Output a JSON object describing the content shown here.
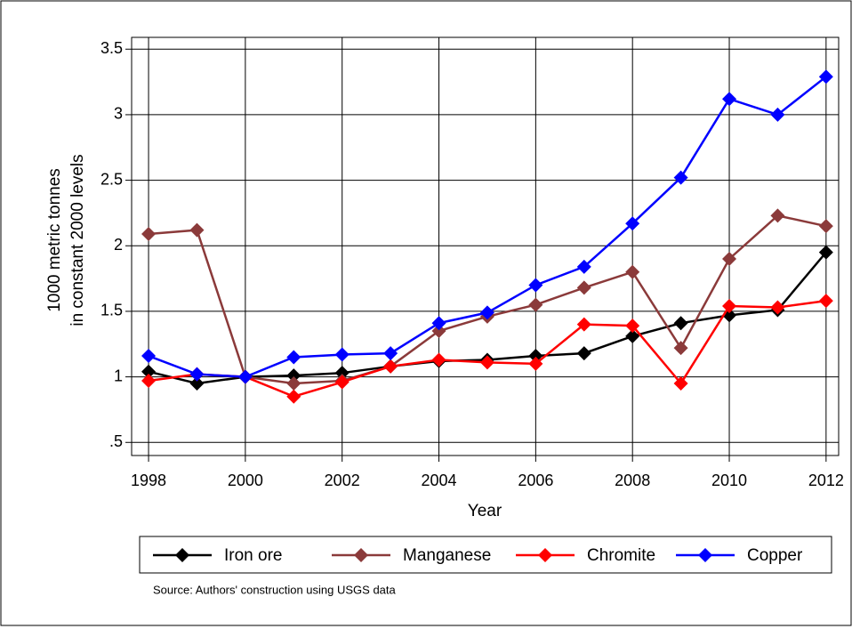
{
  "chart_data": {
    "type": "line",
    "y_label": [
      "1000 metric tonnes",
      "in constant 2000 levels"
    ],
    "x_label": "Year",
    "note": "Source: Authors' construction using USGS data",
    "x": [
      1998,
      1999,
      2000,
      2001,
      2002,
      2003,
      2004,
      2005,
      2006,
      2007,
      2008,
      2009,
      2010,
      2011,
      2012
    ],
    "series": [
      {
        "name": "Iron ore",
        "color": "#000000",
        "values": [
          1.04,
          0.95,
          1.0,
          1.01,
          1.03,
          1.08,
          1.12,
          1.13,
          1.16,
          1.18,
          1.31,
          1.41,
          1.47,
          1.51,
          1.95
        ]
      },
      {
        "name": "Manganese",
        "color": "#8b3a3a",
        "values": [
          2.09,
          2.12,
          1.0,
          0.95,
          0.97,
          1.08,
          1.35,
          1.46,
          1.55,
          1.68,
          1.8,
          1.22,
          1.9,
          2.23,
          2.15
        ]
      },
      {
        "name": "Chromite",
        "color": "#ff0000",
        "values": [
          0.97,
          1.02,
          1.0,
          0.85,
          0.96,
          1.08,
          1.13,
          1.11,
          1.1,
          1.4,
          1.39,
          0.95,
          1.54,
          1.53,
          1.58
        ]
      },
      {
        "name": "Copper",
        "color": "#0000ff",
        "values": [
          1.16,
          1.02,
          1.0,
          1.15,
          1.17,
          1.18,
          1.41,
          1.49,
          1.7,
          1.84,
          2.17,
          2.52,
          3.12,
          3.0,
          3.29
        ]
      }
    ],
    "xlim": [
      1997.65,
      2012.26
    ],
    "xticks": [
      1998,
      2000,
      2002,
      2004,
      2006,
      2008,
      2010,
      2012
    ],
    "ylim": [
      0.4,
      3.59
    ],
    "yticks": [
      {
        "value": 0.5,
        "label": ".5"
      },
      1,
      1.5,
      2,
      2.5,
      3,
      3.5
    ],
    "grid": true,
    "legend": "bottom"
  }
}
